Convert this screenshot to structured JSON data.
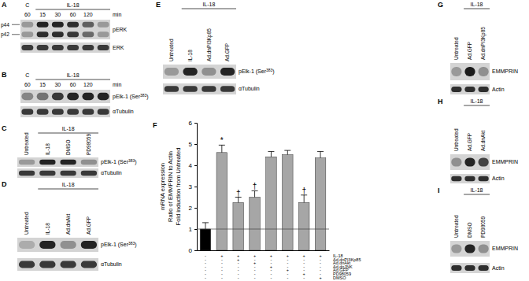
{
  "panels": [
    {
      "label": "A",
      "control": "C",
      "group": {
        "text": "IL-18",
        "start": 1
      },
      "lanes": [
        "60",
        "15",
        "30",
        "60",
        "120"
      ],
      "unit": "min",
      "left_labels": [
        "p44",
        "p42"
      ],
      "rows": [
        {
          "name": "pERK",
          "bands": [
            [
              0.3,
              0.3
            ],
            [
              0.9,
              0.85
            ],
            [
              0.9,
              0.85
            ],
            [
              0.85,
              0.8
            ],
            [
              0.6,
              0.55
            ],
            [
              0.3,
              0.3
            ]
          ]
        },
        {
          "name": "ERK",
          "bands": [
            [
              0.8
            ],
            [
              0.8
            ],
            [
              0.8
            ],
            [
              0.8
            ],
            [
              0.8
            ],
            [
              0.8
            ]
          ]
        }
      ]
    },
    {
      "label": "B",
      "control": "C",
      "group": {
        "text": "IL-18",
        "start": 1
      },
      "lanes": [
        "60",
        "15",
        "30",
        "60",
        "120"
      ],
      "unit": "min",
      "rows": [
        {
          "name": "pElk-1 (Ser383)",
          "bands": [
            [
              0.4
            ],
            [
              0.5
            ],
            [
              0.8
            ],
            [
              0.9
            ],
            [
              0.9
            ],
            [
              0.9
            ]
          ]
        },
        {
          "name": "αTubulin",
          "bands": [
            [
              0.8
            ],
            [
              0.8
            ],
            [
              0.8
            ],
            [
              0.8
            ],
            [
              0.8
            ],
            [
              0.8
            ]
          ]
        }
      ]
    },
    {
      "label": "C",
      "group": {
        "text": "IL-18",
        "start": 1
      },
      "lanes": [
        "Untreated",
        "IL-18",
        "DMSO",
        "PD98059"
      ],
      "rows": [
        {
          "name": "pElk-1 (Ser383)",
          "bands": [
            [
              0.3
            ],
            [
              0.9
            ],
            [
              0.9
            ],
            [
              0.35
            ]
          ]
        },
        {
          "name": "αTubulin",
          "bands": [
            [
              0.8
            ],
            [
              0.8
            ],
            [
              0.8
            ],
            [
              0.8
            ]
          ]
        }
      ]
    },
    {
      "label": "D",
      "group": {
        "text": "IL-18",
        "start": 1
      },
      "lanes": [
        "Untreated",
        "IL-18",
        "Ad.dnAkt",
        "Ad.GFP"
      ],
      "rows": [
        {
          "name": "pElk-1 (Ser383)",
          "bands": [
            [
              0.2
            ],
            [
              0.9
            ],
            [
              0.35
            ],
            [
              0.9
            ]
          ]
        },
        {
          "name": "αTubulin",
          "bands": [
            [
              0.8
            ],
            [
              0.8
            ],
            [
              0.8
            ],
            [
              0.8
            ]
          ]
        }
      ]
    },
    {
      "label": "E",
      "group": {
        "text": "IL-18",
        "start": 1
      },
      "lanes": [
        "Untreated",
        "IL-18",
        "Ad.dnPI3Kp85",
        "Ad.GFP"
      ],
      "rows": [
        {
          "name": "pElk-1 (Ser383)",
          "bands": [
            [
              0.3
            ],
            [
              0.9
            ],
            [
              0.35
            ],
            [
              0.9
            ]
          ]
        },
        {
          "name": "αTubulin",
          "bands": [
            [
              0.8
            ],
            [
              0.8
            ],
            [
              0.8
            ],
            [
              0.8
            ]
          ]
        }
      ]
    },
    {
      "label": "G",
      "group": {
        "text": "IL-18",
        "start": 1
      },
      "lanes": [
        "Untreated",
        "Ad.GFP",
        "Ad.dnPI3Kp85"
      ],
      "rows": [
        {
          "name": "EMMPRIN",
          "bands": [
            [
              0.3
            ],
            [
              0.95
            ],
            [
              0.35
            ]
          ]
        },
        {
          "name": "Actin",
          "bands": [
            [
              0.85
            ],
            [
              0.85
            ],
            [
              0.85
            ]
          ]
        }
      ]
    },
    {
      "label": "H",
      "group": {
        "text": "IL-18",
        "start": 1
      },
      "lanes": [
        "Untreated",
        "Ad.GFP",
        "Ad.dnAkt"
      ],
      "rows": [
        {
          "name": "EMMPRIN",
          "bands": [
            [
              0.35
            ],
            [
              0.9
            ],
            [
              0.75
            ]
          ]
        },
        {
          "name": "Actin",
          "bands": [
            [
              0.85
            ],
            [
              0.85
            ],
            [
              0.85
            ]
          ]
        }
      ]
    },
    {
      "label": "I",
      "group": {
        "text": "IL-18",
        "start": 1
      },
      "lanes": [
        "Untreated",
        "DMSO",
        "PD98059"
      ],
      "rows": [
        {
          "name": "EMMPRIN",
          "bands": [
            [
              0.3
            ],
            [
              0.9
            ],
            [
              0.35
            ]
          ]
        },
        {
          "name": "Actin",
          "bands": [
            [
              0.85
            ],
            [
              0.85
            ],
            [
              0.85
            ]
          ]
        }
      ]
    }
  ],
  "chart_data": {
    "type": "bar",
    "panel_label": "F",
    "ylabel": [
      "mRNA expression",
      "Ratio of EMMPRIN to Actin",
      "Fold induction from Untreated"
    ],
    "categories": [
      null,
      null,
      null,
      null,
      null,
      null,
      null,
      null
    ],
    "values": [
      1.0,
      4.6,
      2.25,
      2.5,
      4.4,
      4.5,
      2.25,
      4.35
    ],
    "errors": [
      0.3,
      0.35,
      0.25,
      0.3,
      0.25,
      0.2,
      0.35,
      0.3
    ],
    "colors": [
      "#000000",
      "#a6a6a6",
      "#a6a6a6",
      "#a6a6a6",
      "#a6a6a6",
      "#a6a6a6",
      "#a6a6a6",
      "#a6a6a6"
    ],
    "ylim": [
      0,
      6
    ],
    "yticks": [
      0,
      1,
      2,
      3,
      4,
      5,
      6
    ],
    "reference_line": 1,
    "annotations": [
      {
        "index": 1,
        "text": "*"
      },
      {
        "index": 2,
        "text": "†"
      },
      {
        "index": 3,
        "text": "†"
      },
      {
        "index": 6,
        "text": "†"
      }
    ],
    "conditions": [
      {
        "label": "IL-18",
        "signs": [
          "-",
          "+",
          "+",
          "+",
          "+",
          "+",
          "+",
          "+"
        ]
      },
      {
        "label": "Ad.dnPI3Kp85",
        "signs": [
          "-",
          "-",
          "+",
          "-",
          "-",
          "-",
          "-",
          "-"
        ]
      },
      {
        "label": "Ad.dnAkt",
        "signs": [
          "-",
          "-",
          "-",
          "+",
          "-",
          "-",
          "-",
          "-"
        ]
      },
      {
        "label": "Ad.dnJNK",
        "signs": [
          "-",
          "-",
          "-",
          "-",
          "+",
          "-",
          "-",
          "-"
        ]
      },
      {
        "label": "Ad.GFP",
        "signs": [
          "-",
          "-",
          "-",
          "-",
          "-",
          "+",
          "-",
          "-"
        ]
      },
      {
        "label": "PD98059",
        "signs": [
          "-",
          "-",
          "-",
          "-",
          "-",
          "-",
          "+",
          "-"
        ]
      },
      {
        "label": "DMSO",
        "signs": [
          "-",
          "-",
          "-",
          "-",
          "-",
          "-",
          "-",
          "+"
        ]
      }
    ]
  }
}
